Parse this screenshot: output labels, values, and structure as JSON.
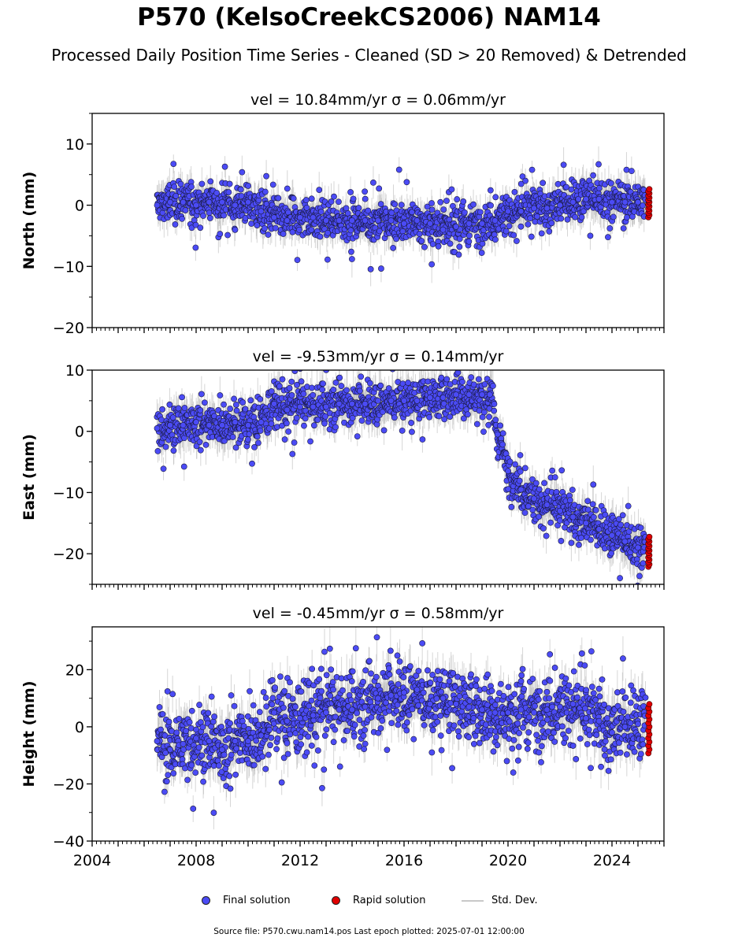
{
  "title": "P570 (KelsoCreekCS2006) NAM14",
  "subtitle": "Processed Daily Position Time Series - Cleaned (SD > 20 Removed) & Detrended",
  "legend": {
    "final": "Final solution",
    "rapid": "Rapid solution",
    "std": "Std. Dev."
  },
  "footer": "Source file: P570.cwu.nam14.pos  Last epoch plotted: 2025-07-01 12:00:00",
  "colors": {
    "final": "#4b4bf5",
    "rapid": "#e00000",
    "std": "#b4b4b4"
  },
  "chart_data": [
    {
      "type": "scatter",
      "title": "vel = 10.84mm/yr   σ = 0.06mm/yr",
      "ylabel": "North (mm)",
      "xlim": [
        2004,
        2026
      ],
      "ylim": [
        -20,
        15
      ],
      "yticks": [
        -20,
        -10,
        0,
        10
      ],
      "xticks": [],
      "series": [
        {
          "name": "Final solution",
          "x": [
            2006.5,
            2007.0,
            2007.5,
            2008.0,
            2008.5,
            2009.0,
            2009.5,
            2010.0,
            2010.5,
            2011.0,
            2011.5,
            2012.0,
            2012.5,
            2013.0,
            2013.5,
            2014.0,
            2014.5,
            2015.0,
            2015.5,
            2016.0,
            2016.5,
            2017.0,
            2017.5,
            2018.0,
            2018.5,
            2019.0,
            2019.5,
            2020.0,
            2020.5,
            2021.0,
            2021.5,
            2022.0,
            2022.5,
            2023.0,
            2023.5,
            2024.0,
            2024.5,
            2025.0
          ],
          "y": [
            0.0,
            0.5,
            0.5,
            0.0,
            0.5,
            0.5,
            0.0,
            0.5,
            -1.0,
            -2.0,
            -2.5,
            -2.0,
            -2.0,
            -2.5,
            -2.5,
            -2.5,
            -2.5,
            -2.5,
            -2.5,
            -3.0,
            -2.5,
            -3.0,
            -4.0,
            -3.5,
            -3.0,
            -3.0,
            -2.5,
            -1.0,
            -1.0,
            -0.5,
            -0.5,
            0.0,
            0.5,
            1.0,
            1.0,
            0.5,
            0.5,
            0.5
          ]
        },
        {
          "name": "Rapid solution",
          "x": [
            2025.4
          ],
          "y": [
            0.5
          ]
        }
      ]
    },
    {
      "type": "scatter",
      "title": "vel = -9.53mm/yr   σ = 0.14mm/yr",
      "ylabel": "East (mm)",
      "xlim": [
        2004,
        2026
      ],
      "ylim": [
        -25,
        10
      ],
      "yticks": [
        -20,
        -10,
        0,
        10
      ],
      "xticks": [],
      "series": [
        {
          "name": "Final solution",
          "x": [
            2006.5,
            2007.0,
            2007.5,
            2008.0,
            2008.5,
            2009.0,
            2009.5,
            2010.0,
            2010.5,
            2011.0,
            2011.5,
            2012.0,
            2012.5,
            2013.0,
            2013.5,
            2014.0,
            2014.5,
            2015.0,
            2015.5,
            2016.0,
            2016.5,
            2017.0,
            2017.5,
            2018.0,
            2018.5,
            2019.0,
            2019.3,
            2019.6,
            2020.0,
            2020.5,
            2021.0,
            2021.5,
            2022.0,
            2022.5,
            2023.0,
            2023.5,
            2024.0,
            2024.5,
            2025.0
          ],
          "y": [
            0.5,
            1.0,
            1.0,
            1.5,
            1.0,
            1.0,
            1.5,
            1.0,
            1.5,
            4.5,
            3.5,
            4.0,
            4.0,
            4.0,
            4.5,
            4.5,
            4.5,
            5.0,
            5.0,
            5.0,
            5.0,
            5.5,
            5.5,
            6.0,
            6.0,
            6.0,
            6.0,
            -0.5,
            -6.5,
            -9.5,
            -11.0,
            -12.0,
            -13.0,
            -14.0,
            -15.0,
            -16.0,
            -17.0,
            -18.0,
            -19.0
          ]
        },
        {
          "name": "Rapid solution",
          "x": [
            2025.4
          ],
          "y": [
            -19.5
          ]
        }
      ]
    },
    {
      "type": "scatter",
      "title": "vel = -0.45mm/yr   σ = 0.58mm/yr",
      "ylabel": "Height (mm)",
      "xlim": [
        2004,
        2026
      ],
      "ylim": [
        -40,
        35
      ],
      "yticks": [
        -40,
        -20,
        0,
        20
      ],
      "xticks": [
        2004,
        2008,
        2012,
        2016,
        2020,
        2024
      ],
      "series": [
        {
          "name": "Final solution",
          "x": [
            2006.5,
            2007.0,
            2007.5,
            2008.0,
            2008.5,
            2009.0,
            2009.5,
            2010.0,
            2010.5,
            2011.0,
            2011.5,
            2012.0,
            2012.5,
            2013.0,
            2013.5,
            2014.0,
            2014.5,
            2015.0,
            2015.5,
            2016.0,
            2016.5,
            2017.0,
            2017.5,
            2018.0,
            2018.5,
            2019.0,
            2019.5,
            2020.0,
            2020.5,
            2021.0,
            2021.5,
            2022.0,
            2022.5,
            2023.0,
            2023.5,
            2024.0,
            2024.5,
            2025.0
          ],
          "y": [
            -5.0,
            -8.0,
            -6.0,
            -4.0,
            -5.0,
            -8.0,
            -5.0,
            -5.0,
            -3.0,
            5.0,
            2.0,
            3.0,
            4.0,
            5.0,
            6.0,
            6.0,
            7.0,
            10.0,
            11.0,
            12.0,
            13.0,
            8.0,
            10.0,
            8.0,
            7.0,
            6.0,
            5.0,
            5.0,
            6.0,
            5.0,
            6.0,
            7.0,
            8.0,
            3.0,
            2.0,
            -2.0,
            0.0,
            1.0
          ]
        },
        {
          "name": "Rapid solution",
          "x": [
            2025.4
          ],
          "y": [
            0.0
          ]
        }
      ]
    }
  ]
}
